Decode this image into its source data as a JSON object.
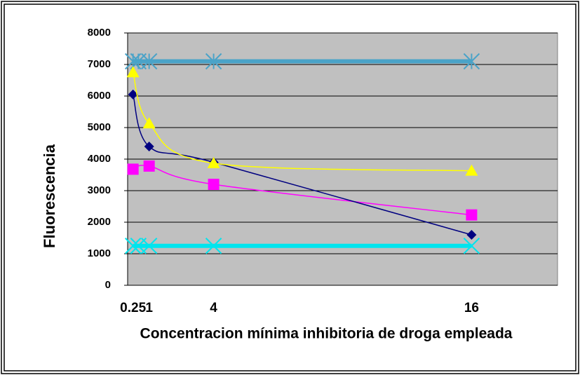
{
  "chart_data": {
    "type": "scatter",
    "x_label": "Concentracion mínima inhibitoria de droga empleada",
    "y_label": "Fluorescencia",
    "xlim": [
      0,
      20
    ],
    "xticks": [
      0.25,
      1,
      4,
      16
    ],
    "ylim": [
      0,
      8000
    ],
    "yticks": [
      0,
      1000,
      2000,
      3000,
      4000,
      5000,
      6000,
      7000,
      8000
    ],
    "grid": true,
    "smooth": true,
    "series": [
      {
        "color": "#4aa3c8",
        "marker": "star",
        "line_width": 6,
        "x": [
          0.25,
          0.5,
          1,
          4,
          16
        ],
        "values": [
          7100,
          7100,
          7100,
          7100,
          7100
        ]
      },
      {
        "color": "#00e5ee",
        "marker": "x",
        "line_width": 6,
        "x": [
          0.25,
          0.5,
          1,
          4,
          16
        ],
        "values": [
          1250,
          1250,
          1250,
          1250,
          1250
        ]
      },
      {
        "color": "#ff00ff",
        "marker": "square",
        "line_width": 1.5,
        "x": [
          0.25,
          1,
          4,
          16
        ],
        "values": [
          3680,
          3780,
          3200,
          2230
        ]
      },
      {
        "color": "#000080",
        "marker": "diamond",
        "line_width": 1.5,
        "x": [
          0.25,
          1,
          4,
          16
        ],
        "values": [
          6050,
          4400,
          3900,
          1600
        ]
      },
      {
        "color": "#ffff00",
        "marker": "triangle",
        "line_width": 1.5,
        "x": [
          0.25,
          1,
          4,
          16
        ],
        "values": [
          6750,
          5130,
          3870,
          3630
        ]
      }
    ]
  }
}
